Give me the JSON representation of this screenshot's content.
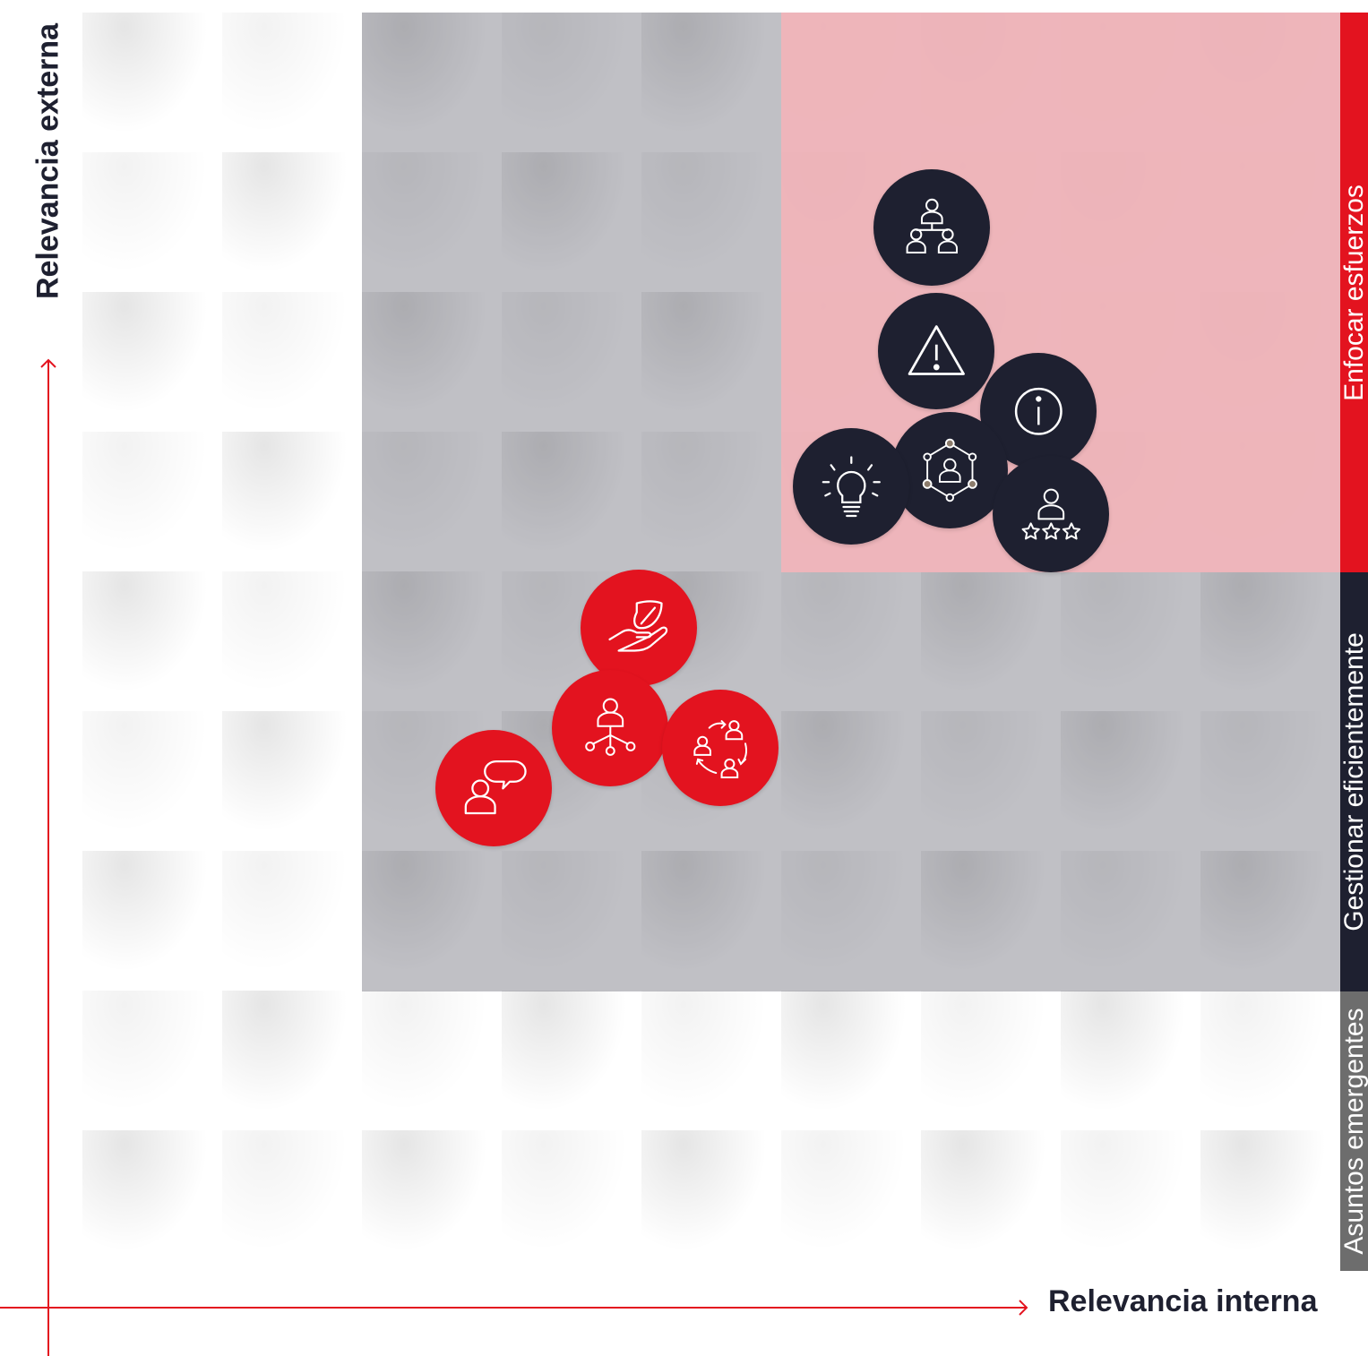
{
  "axes": {
    "x_label": "Relevancia interna",
    "y_label": "Relevancia externa"
  },
  "zones": [
    {
      "label": "Enfocar esfuerzos",
      "color": "#e3131f",
      "fill": "#f2b4ba"
    },
    {
      "label": "Gestionar eficientemente",
      "color": "#1e2030",
      "fill": "#b4b4ba"
    },
    {
      "label": "Asuntos emergentes",
      "color": "#6d6d6d",
      "fill": "#f3f3f3"
    }
  ],
  "colors": {
    "axis": "#e3131f",
    "dark_circle": "#1e2030",
    "red_circle": "#e3131f",
    "icon_stroke": "#ffffff",
    "node_accent": "#8c7c6c"
  },
  "issues": [
    {
      "icon": "org-hierarchy-icon",
      "group": "Enfocar esfuerzos"
    },
    {
      "icon": "warning-triangle-icon",
      "group": "Enfocar esfuerzos"
    },
    {
      "icon": "info-icon",
      "group": "Enfocar esfuerzos"
    },
    {
      "icon": "network-person-icon",
      "group": "Enfocar esfuerzos"
    },
    {
      "icon": "lightbulb-icon",
      "group": "Enfocar esfuerzos"
    },
    {
      "icon": "person-rating-stars-icon",
      "group": "Enfocar esfuerzos"
    },
    {
      "icon": "hand-leaf-icon",
      "group": "Gestionar eficientemente"
    },
    {
      "icon": "person-network-icon",
      "group": "Gestionar eficientemente"
    },
    {
      "icon": "people-cycle-icon",
      "group": "Gestionar eficientemente"
    },
    {
      "icon": "person-speech-icon",
      "group": "Gestionar eficientemente"
    }
  ]
}
